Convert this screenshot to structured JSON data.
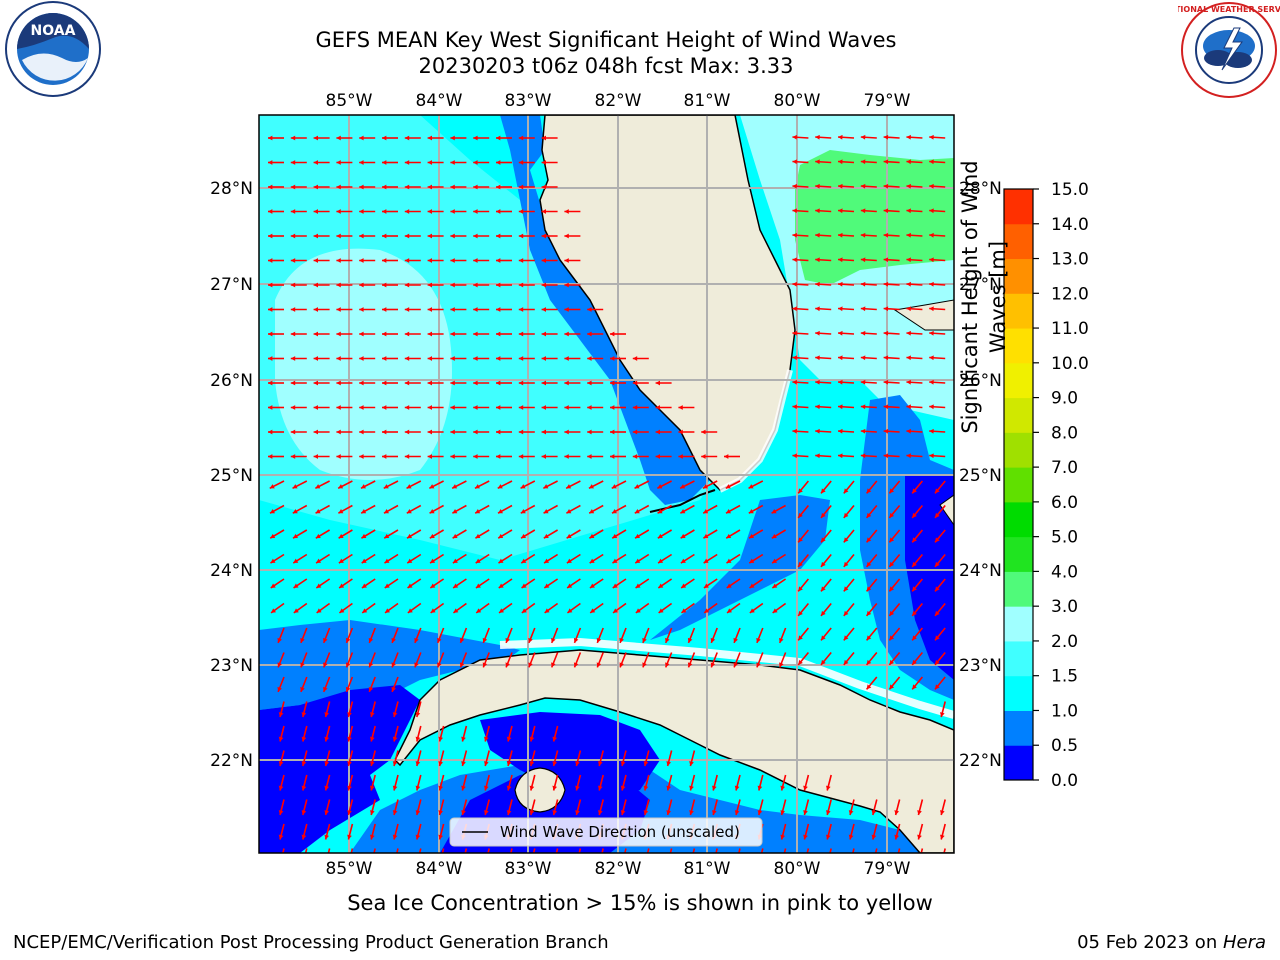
{
  "header": {
    "title_line1": "GEFS MEAN Key West Significant Height of Wind Waves",
    "title_line2": "20230203 t06z 048h fcst   Max: 3.33"
  },
  "axes": {
    "lon_labels": [
      "85°W",
      "84°W",
      "83°W",
      "82°W",
      "81°W",
      "80°W",
      "79°W"
    ],
    "lat_labels": [
      "28°N",
      "27°N",
      "26°N",
      "25°N",
      "24°N",
      "23°N",
      "22°N"
    ]
  },
  "legend": {
    "label": "Wind Wave Direction (unscaled)"
  },
  "colorbar": {
    "label": "Significant Height of Wind Waves [m]",
    "ticks": [
      "0.0",
      "0.5",
      "1.0",
      "1.5",
      "2.0",
      "3.0",
      "4.0",
      "5.0",
      "6.0",
      "7.0",
      "8.0",
      "9.0",
      "10.0",
      "11.0",
      "12.0",
      "13.0",
      "14.0",
      "15.0"
    ],
    "colors": [
      "#0000ff",
      "#0080ff",
      "#00ffff",
      "#40ffff",
      "#a0ffff",
      "#50fa7a",
      "#20e420",
      "#00dc00",
      "#60e000",
      "#a0e000",
      "#d0e800",
      "#f0f000",
      "#ffe000",
      "#ffc000",
      "#ff9000",
      "#ff6000",
      "#ff3000"
    ]
  },
  "bottom_note": "Sea Ice Concentration > 15% is shown in pink to yellow",
  "footer": {
    "left": "NCEP/EMC/Verification Post Processing Product Generation Branch",
    "date": "05 Feb 2023 on ",
    "host": "Hera"
  },
  "logos": {
    "left": "NOAA",
    "right": "NATIONAL WEATHER SERVICE"
  },
  "colors": {
    "land": "#efecda",
    "arrow": "#ff0000",
    "grid": "#b0b0b0"
  }
}
